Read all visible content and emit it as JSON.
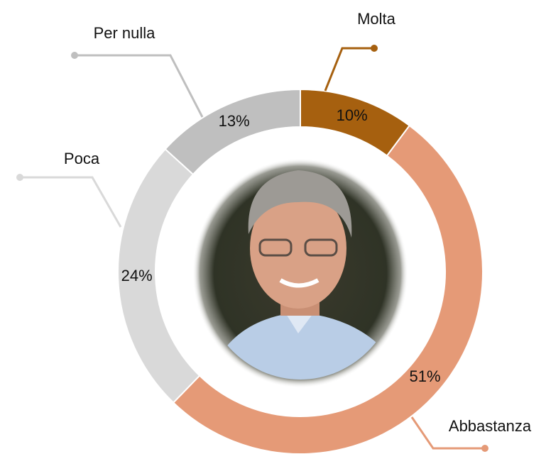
{
  "chart_data": {
    "type": "donut",
    "categories": [
      "Molta",
      "Abbastanza",
      "Poca",
      "Per nulla"
    ],
    "values": [
      10,
      51,
      24,
      13
    ],
    "value_labels": [
      "10%",
      "51%",
      "24%",
      "13%"
    ],
    "colors": [
      "#a6600f",
      "#e59a77",
      "#d9d9d9",
      "#bfbfbf"
    ]
  }
}
